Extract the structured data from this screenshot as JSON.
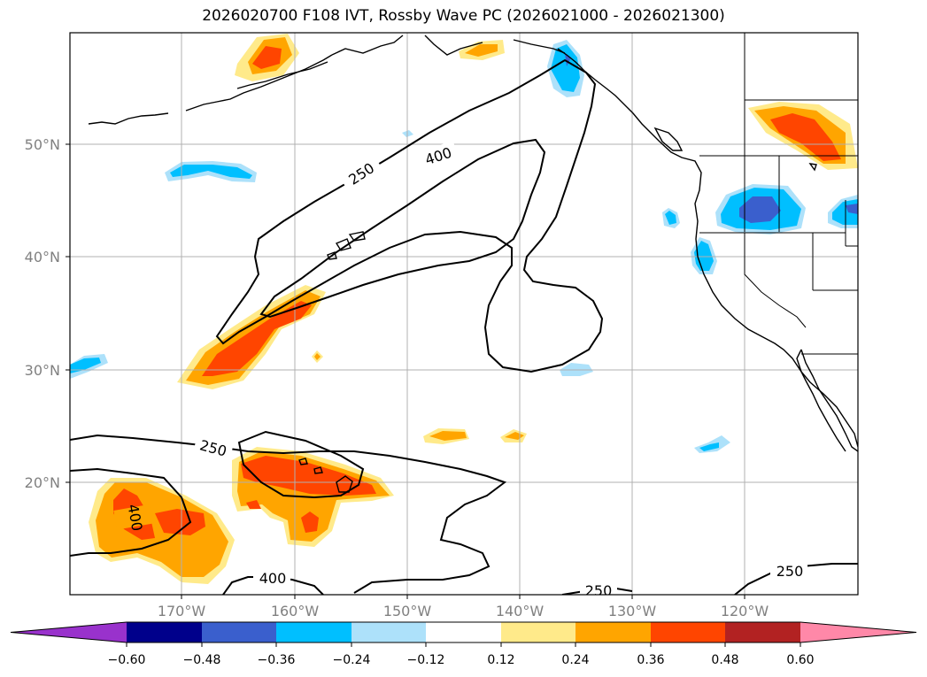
{
  "title": "2026020700 F108 IVT, Rossby Wave PC (2026021000 - 2026021300)",
  "lat_labels": [
    "50°N",
    "40°N",
    "30°N",
    "20°N"
  ],
  "lon_labels": [
    "170°W",
    "160°W",
    "150°W",
    "140°W",
    "130°W",
    "120°W"
  ],
  "contour_labels": [
    "250",
    "400",
    "250",
    "400",
    "250",
    "250",
    "400"
  ],
  "colorbar": {
    "ticks": [
      "−0.60",
      "−0.48",
      "−0.36",
      "−0.24",
      "−0.12",
      "0.12",
      "0.24",
      "0.36",
      "0.48",
      "0.60"
    ],
    "colors": {
      "under": "#9932CC",
      "neg60": "#00008B",
      "neg48": "#3A5FCD",
      "neg36": "#00BFFF",
      "neg24": "#ADE1FA",
      "zero": "#FFFFFF",
      "pos12": "#FFEA8A",
      "pos24": "#FFA500",
      "pos36": "#FF4500",
      "pos48": "#B22222",
      "over": "#FF88A8"
    }
  }
}
